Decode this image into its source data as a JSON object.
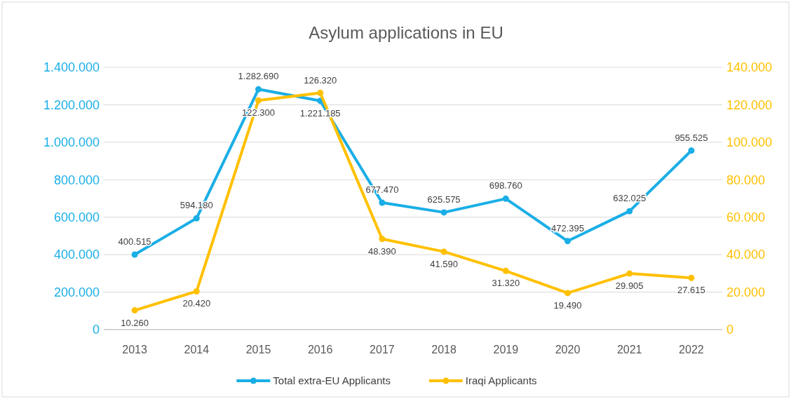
{
  "chart_data": {
    "type": "line",
    "title": "Asylum applications in EU",
    "categories": [
      "2013",
      "2014",
      "2015",
      "2016",
      "2017",
      "2018",
      "2019",
      "2020",
      "2021",
      "2022"
    ],
    "series": [
      {
        "name": "Total extra-EU Applicants",
        "color": "#1aaee6",
        "values": [
          400515,
          594180,
          1282690,
          1221185,
          677470,
          625575,
          698760,
          472395,
          632025,
          955525
        ],
        "value_labels": [
          "400.515",
          "594.180",
          "1.282.690",
          "1.221.185",
          "677.470",
          "625.575",
          "698.760",
          "472.395",
          "632.025",
          "955.525"
        ]
      },
      {
        "name": "Iraqi Applicants",
        "color": "#ffc000",
        "axis": "y2",
        "values": [
          10260,
          20420,
          122300,
          126320,
          48390,
          41590,
          31320,
          19490,
          29905,
          27615
        ],
        "value_labels": [
          "10.260",
          "20.420",
          "122.300",
          "126.320",
          "48.390",
          "41.590",
          "31.320",
          "19.490",
          "29.905",
          "27.615"
        ]
      }
    ],
    "ylim": [
      0,
      1400000
    ],
    "yticks": [
      {
        "value": 0,
        "label": "0"
      },
      {
        "value": 200000,
        "label": "200.000"
      },
      {
        "value": 400000,
        "label": "400.000"
      },
      {
        "value": 600000,
        "label": "600.000"
      },
      {
        "value": 800000,
        "label": "800.000"
      },
      {
        "value": 1000000,
        "label": "1.000.000"
      },
      {
        "value": 1200000,
        "label": "1.200.000"
      },
      {
        "value": 1400000,
        "label": "1.400.000"
      }
    ],
    "y2lim": [
      0,
      140000
    ],
    "y2ticks": [
      {
        "value": 0,
        "label": "0"
      },
      {
        "value": 20000,
        "label": "20.000"
      },
      {
        "value": 40000,
        "label": "40.000"
      },
      {
        "value": 60000,
        "label": "60.000"
      },
      {
        "value": 80000,
        "label": "80.000"
      },
      {
        "value": 100000,
        "label": "100.000"
      },
      {
        "value": 120000,
        "label": "120.000"
      },
      {
        "value": 140000,
        "label": "140.000"
      }
    ],
    "grid": "y",
    "legend": "bottom",
    "marker": "circle",
    "line_style": "solid"
  }
}
